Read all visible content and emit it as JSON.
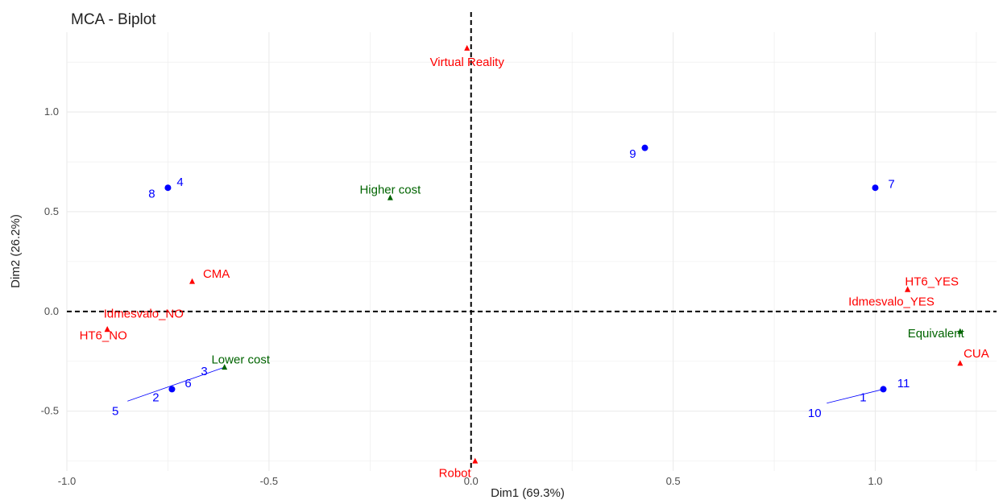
{
  "chart_data": {
    "type": "scatter",
    "title": "MCA - Biplot",
    "xlabel": "Dim1 (69.3%)",
    "ylabel": "Dim2 (26.2%)",
    "xlim": [
      -1.0,
      1.3
    ],
    "ylim": [
      -0.8,
      1.4
    ],
    "x_ticks": [
      -1.0,
      -0.5,
      0.0,
      0.5,
      1.0
    ],
    "y_ticks": [
      -0.5,
      0.0,
      0.5,
      1.0
    ],
    "x_tick_labels": [
      "-1.0",
      "-0.5",
      "0.0",
      "0.5",
      "1.0"
    ],
    "y_tick_labels": [
      "-0.5",
      "0.0",
      "0.5",
      "1.0"
    ],
    "grid": true,
    "legend": "none",
    "colors": {
      "individuals": "#0000ff",
      "variables_red": "#ff0000",
      "variables_green": "#006400"
    },
    "individuals": [
      {
        "label": "4",
        "x": -0.75,
        "y": 0.62,
        "label_dx": 0.03,
        "label_dy": 0.03,
        "marker": true
      },
      {
        "label": "8",
        "x": -0.75,
        "y": 0.62,
        "label_dx": -0.04,
        "label_dy": -0.03,
        "marker": false
      },
      {
        "label": "9",
        "x": 0.43,
        "y": 0.82,
        "label_dx": -0.03,
        "label_dy": -0.03,
        "marker": true
      },
      {
        "label": "7",
        "x": 1.0,
        "y": 0.62,
        "label_dx": 0.04,
        "label_dy": 0.02,
        "marker": true
      },
      {
        "label": "6",
        "x": -0.74,
        "y": -0.39,
        "label_dx": 0.04,
        "label_dy": 0.03,
        "marker": true
      },
      {
        "label": "2",
        "x": -0.74,
        "y": -0.39,
        "label_dx": -0.04,
        "label_dy": -0.04,
        "marker": false
      },
      {
        "label": "3",
        "x": -0.66,
        "y": -0.35,
        "label_dx": 0.0,
        "label_dy": 0.05,
        "marker": false
      },
      {
        "label": "5",
        "x": -0.85,
        "y": -0.45,
        "label_dx": -0.03,
        "label_dy": -0.05,
        "marker": false
      },
      {
        "label": "11",
        "x": 1.02,
        "y": -0.39,
        "label_dx": 0.05,
        "label_dy": 0.03,
        "marker": true
      },
      {
        "label": "1",
        "x": 1.02,
        "y": -0.39,
        "label_dx": -0.05,
        "label_dy": -0.04,
        "marker": false
      },
      {
        "label": "10",
        "x": 0.9,
        "y": -0.46,
        "label_dx": -0.05,
        "label_dy": -0.05,
        "marker": false
      }
    ],
    "segments": [
      {
        "x1": -0.85,
        "y1": -0.45,
        "x2": -0.61,
        "y2": -0.28
      },
      {
        "x1": 0.88,
        "y1": -0.46,
        "x2": 1.02,
        "y2": -0.39
      }
    ],
    "variables": [
      {
        "label": "Virtual Reality",
        "x": -0.01,
        "y": 1.32,
        "color": "variables_red",
        "label_dx": 0.0,
        "label_dy": -0.07
      },
      {
        "label": "Higher cost",
        "x": -0.2,
        "y": 0.57,
        "color": "variables_green",
        "label_dx": 0.0,
        "label_dy": 0.04
      },
      {
        "label": "CMA",
        "x": -0.69,
        "y": 0.15,
        "color": "variables_red",
        "label_dx": 0.06,
        "label_dy": 0.04
      },
      {
        "label": "Idmesvalo_NO",
        "x": -0.9,
        "y": -0.09,
        "color": "variables_red",
        "label_dx": 0.09,
        "label_dy": 0.08
      },
      {
        "label": "HT6_NO",
        "x": -0.9,
        "y": -0.09,
        "color": "variables_red",
        "label_dx": -0.01,
        "label_dy": -0.03
      },
      {
        "label": "Lower cost",
        "x": -0.61,
        "y": -0.28,
        "color": "variables_green",
        "label_dx": 0.04,
        "label_dy": 0.04
      },
      {
        "label": "HT6_YES",
        "x": 1.08,
        "y": 0.11,
        "color": "variables_red",
        "label_dx": 0.06,
        "label_dy": 0.04
      },
      {
        "label": "Idmesvalo_YES",
        "x": 1.08,
        "y": 0.11,
        "color": "variables_red",
        "label_dx": -0.04,
        "label_dy": -0.06
      },
      {
        "label": "Equivalent",
        "x": 1.21,
        "y": -0.1,
        "color": "variables_green",
        "label_dx": -0.06,
        "label_dy": -0.01
      },
      {
        "label": "CUA",
        "x": 1.21,
        "y": -0.26,
        "color": "variables_red",
        "label_dx": 0.04,
        "label_dy": 0.05
      },
      {
        "label": "Robot",
        "x": 0.01,
        "y": -0.75,
        "color": "variables_red",
        "label_dx": -0.05,
        "label_dy": -0.06
      }
    ]
  }
}
